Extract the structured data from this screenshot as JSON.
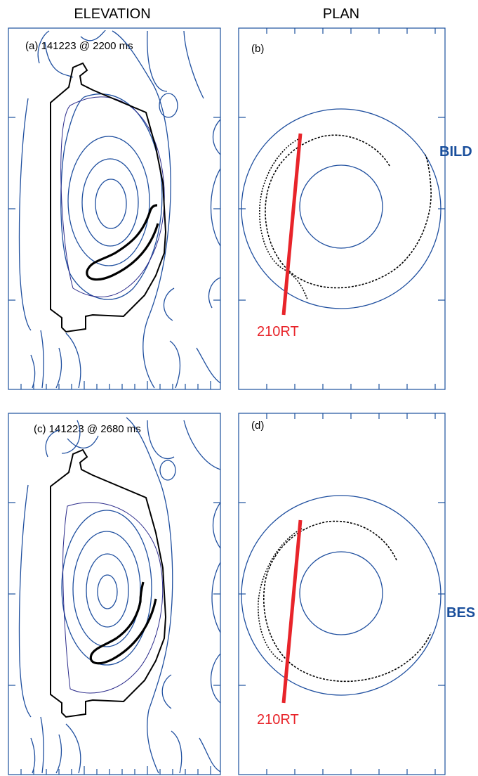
{
  "figure": {
    "headers": {
      "elevation": "ELEVATION",
      "plan": "PLAN"
    },
    "panels": [
      {
        "id": "a",
        "label": "(a) 141223 @ 2200 ms"
      },
      {
        "id": "b",
        "label": "(b)",
        "chord_label": "210RT",
        "diagnostic": "BILD"
      },
      {
        "id": "c",
        "label": "(c) 141223 @ 2680 ms"
      },
      {
        "id": "d",
        "label": "(d)",
        "chord_label": "210RT",
        "diagnostic": "BES"
      }
    ],
    "colors": {
      "flux_surfaces": "#1f4f9f",
      "vessel_wall": "#000000",
      "orbit": "#000000",
      "chord": "#e8242a",
      "diagnostic_label": "#1a4f9c"
    }
  }
}
